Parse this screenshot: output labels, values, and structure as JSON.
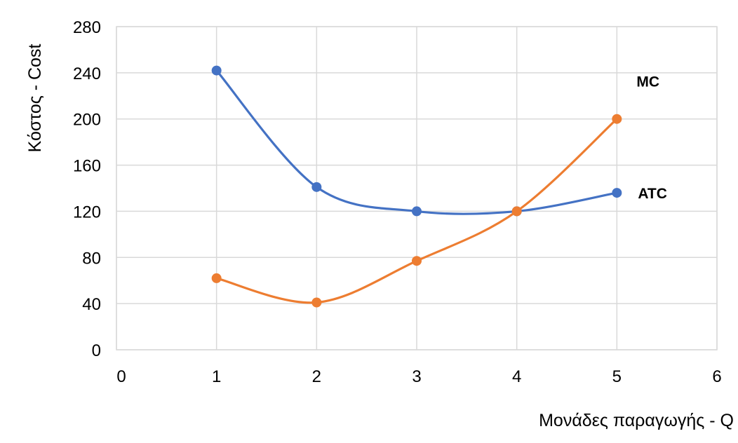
{
  "chart_data": {
    "type": "line",
    "title": "",
    "xlabel": "Μονάδες παραγωγής - Q",
    "ylabel": "Κόστος - Cost",
    "xlim": [
      0,
      6
    ],
    "ylim": [
      0,
      280
    ],
    "x_ticks": [
      "0",
      "1",
      "2",
      "3",
      "4",
      "5",
      "6"
    ],
    "y_ticks": [
      "0",
      "40",
      "80",
      "120",
      "160",
      "200",
      "240",
      "280"
    ],
    "grid": true,
    "legend": "none",
    "smooth": true,
    "series": [
      {
        "name": "ATC",
        "color": "#4472c4",
        "x": [
          1,
          2,
          3,
          4,
          5
        ],
        "y": [
          242,
          141,
          120,
          120,
          136
        ]
      },
      {
        "name": "MC",
        "color": "#ed7d31",
        "x": [
          1,
          2,
          3,
          4,
          5
        ],
        "y": [
          62,
          41,
          77,
          120,
          200
        ]
      }
    ]
  }
}
